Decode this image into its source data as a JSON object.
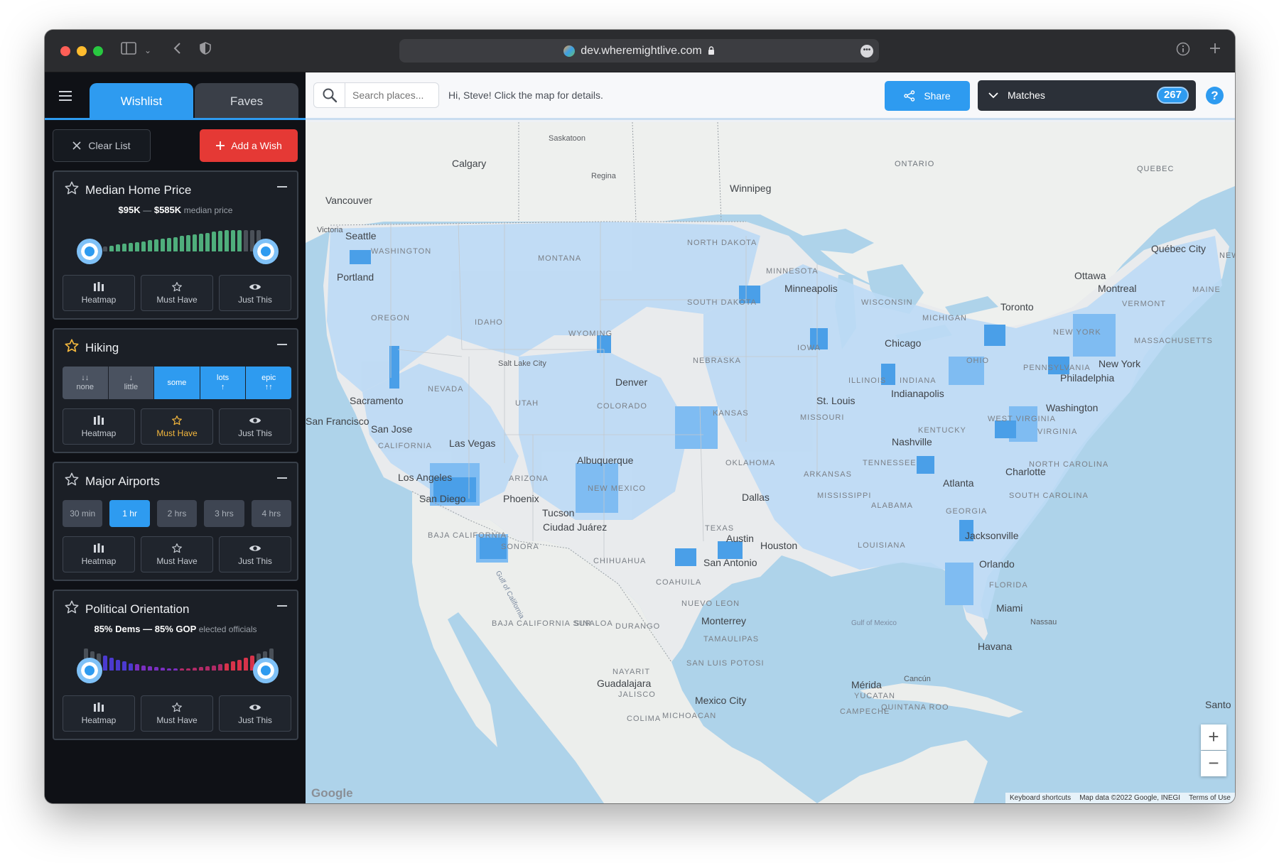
{
  "browser": {
    "url": "dev.wheremightlive.com"
  },
  "sidebar": {
    "tabs": [
      {
        "label": "Wishlist",
        "active": true
      },
      {
        "label": "Faves",
        "active": false
      }
    ],
    "clear_label": "Clear List",
    "add_label": "Add a Wish",
    "actions": {
      "heatmap": "Heatmap",
      "must_have": "Must Have",
      "just_this": "Just This"
    },
    "cards": {
      "home_price": {
        "title": "Median Home Price",
        "min": "$95K",
        "sep": "—",
        "max": "$585K",
        "unit": "median price",
        "range_selected": [
          0.08,
          0.9
        ]
      },
      "hiking": {
        "title": "Hiking",
        "must_have": true,
        "levels": [
          {
            "arrows": "↓↓",
            "label": "none",
            "selected": false
          },
          {
            "arrows": "↓",
            "label": "little",
            "selected": false
          },
          {
            "arrows": "",
            "label": "some",
            "selected": true
          },
          {
            "arrows": "↑",
            "label": "lots",
            "selected": true
          },
          {
            "arrows": "↑↑",
            "label": "epic",
            "selected": true
          }
        ]
      },
      "airports": {
        "title": "Major Airports",
        "options": [
          "30 min",
          "1 hr",
          "2 hrs",
          "3 hrs",
          "4 hrs"
        ],
        "selected": "1 hr"
      },
      "political": {
        "title": "Political Orientation",
        "left": "85% Dems",
        "sep": "—",
        "right": "85% GOP",
        "unit": "elected officials",
        "range_selected": [
          0.08,
          0.9
        ]
      }
    }
  },
  "topbar": {
    "search_placeholder": "Search places...",
    "greeting": "Hi, Steve! Click the map for details.",
    "share_label": "Share",
    "matches_label": "Matches",
    "matches_count": "267",
    "help_label": "?"
  },
  "map": {
    "cities": [
      "Saskatoon",
      "Calgary",
      "Regina",
      "Winnipeg",
      "Vancouver",
      "Victoria",
      "Seattle",
      "Portland",
      "Sacramento",
      "San Francisco",
      "San Jose",
      "Los Angeles",
      "San Diego",
      "Las Vegas",
      "Phoenix",
      "Tucson",
      "Salt Lake City",
      "Denver",
      "Albuquerque",
      "Ciudad Juárez",
      "Minneapolis",
      "Chicago",
      "Indianapolis",
      "St. Louis",
      "Nashville",
      "Dallas",
      "Austin",
      "Houston",
      "San Antonio",
      "Charlotte",
      "Atlanta",
      "Jacksonville",
      "Orlando",
      "Miami",
      "Washington",
      "Philadelphia",
      "New York",
      "Toronto",
      "Ottawa",
      "Montreal",
      "Québec City",
      "Monterrey",
      "Havana",
      "Nassau",
      "Mérida",
      "Cancún",
      "Guadalajara",
      "Mexico City",
      "Santo"
    ],
    "regions": [
      "ONTARIO",
      "QUEBEC",
      "NEW BRUNS",
      "MONTANA",
      "NORTH DAKOTA",
      "SOUTH DAKOTA",
      "WASHINGTON",
      "OREGON",
      "IDAHO",
      "WYOMING",
      "NEBRASKA",
      "IOWA",
      "MINNESOTA",
      "WISCONSIN",
      "MICHIGAN",
      "NEVADA",
      "UTAH",
      "COLORADO",
      "KANSAS",
      "MISSOURI",
      "ILLINOIS",
      "INDIANA",
      "OHIO",
      "CALIFORNIA",
      "ARIZONA",
      "NEW MEXICO",
      "OKLAHOMA",
      "ARKANSAS",
      "TENNESSEE",
      "TEXAS",
      "LOUISIANA",
      "MISSISSIPPI",
      "ALABAMA",
      "GEORGIA",
      "NORTH CAROLINA",
      "SOUTH CAROLINA",
      "VIRGINIA",
      "WEST VIRGINIA",
      "KENTUCKY",
      "PENNSYLVANIA",
      "NEW YORK",
      "VERMONT",
      "MAINE",
      "MASSACHUSETTS",
      "FLORIDA",
      "BAJA CALIFORNIA",
      "SONORA",
      "CHIHUAHUA",
      "COAHUILA",
      "NUEVO LEON",
      "TAMAULIPAS",
      "DURANGO",
      "SINALOA",
      "BAJA CALIFORNIA SUR",
      "NAYARIT",
      "SAN LUIS POTOSI",
      "JALISCO",
      "MICHOACAN",
      "YUCATAN",
      "CAMPECHE",
      "QUINTANA ROO",
      "COLIMA",
      "Gulf of California",
      "Gulf of Mexico"
    ],
    "zoom_in": "+",
    "zoom_out": "−",
    "google": "Google",
    "attribution": [
      "Keyboard shortcuts",
      "Map data ©2022 Google, INEGI",
      "Terms of Use"
    ]
  },
  "colors": {
    "accent": "#2e9bf0",
    "danger": "#e53935",
    "sidebar_bg": "#0f1116",
    "card_bg": "#1b1f26",
    "must_have": "#f5b83d"
  }
}
